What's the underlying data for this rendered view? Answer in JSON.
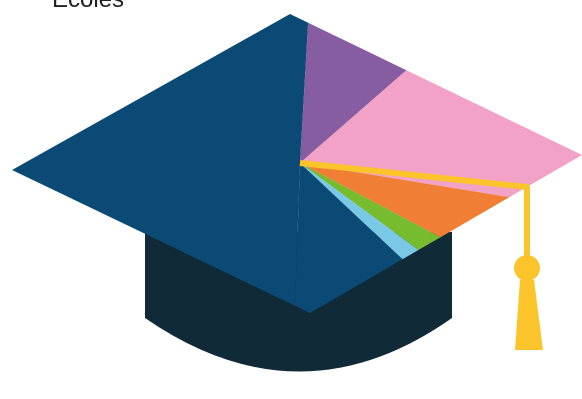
{
  "title": "Ecoles",
  "chart_data": {
    "type": "pie",
    "title": "Ecoles",
    "slices": [
      {
        "value": 34.2,
        "color": "#0b4a75"
      },
      {
        "value": 8.6,
        "color": "#875da2"
      },
      {
        "value": 9.5,
        "color": "#f2a1c7"
      },
      {
        "value": 3.5,
        "color": "#f07f35"
      },
      {
        "value": 1.6,
        "color": "#77bb2e"
      },
      {
        "value": 1.3,
        "color": "#79c8e6"
      },
      {
        "value": 9.2,
        "color": "#0b4a75"
      }
    ],
    "legend": "none"
  },
  "cap": {
    "crown_color": "#112a38",
    "tassel_color": "#fbc42a"
  }
}
